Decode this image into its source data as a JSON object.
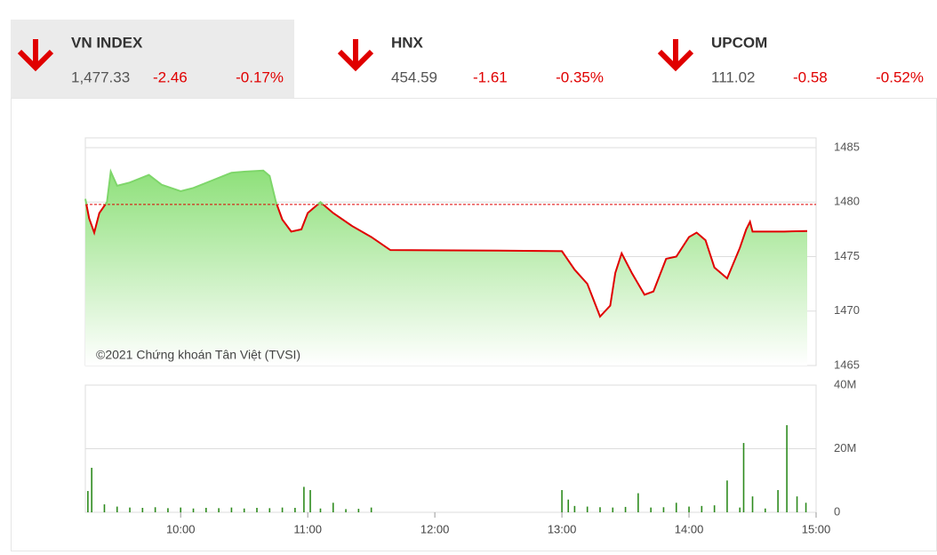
{
  "tabs": [
    {
      "name": "VN INDEX",
      "value": "1,477.33",
      "change": "-2.46",
      "percent": "-0.17%"
    },
    {
      "name": "HNX",
      "value": "454.59",
      "change": "-1.61",
      "percent": "-0.35%"
    },
    {
      "name": "UPCOM",
      "value": "111.02",
      "change": "-0.58",
      "percent": "-0.52%"
    }
  ],
  "chart_data": [
    {
      "type": "line",
      "annotation": "©2021 Chứng khoán Tân Việt (TVSI)",
      "x": [
        9.25,
        9.28,
        9.32,
        9.36,
        9.42,
        9.45,
        9.5,
        9.6,
        9.75,
        9.85,
        10.0,
        10.1,
        10.25,
        10.4,
        10.5,
        10.65,
        10.7,
        10.75,
        10.8,
        10.87,
        10.95,
        11.0,
        11.1,
        11.2,
        11.35,
        11.5,
        11.65,
        12.5,
        13.0,
        13.1,
        13.2,
        13.3,
        13.38,
        13.42,
        13.47,
        13.55,
        13.65,
        13.72,
        13.82,
        13.9,
        14.0,
        14.06,
        14.13,
        14.2,
        14.3,
        14.4,
        14.45,
        14.48,
        14.5,
        14.75,
        14.93
      ],
      "values": [
        1480.3,
        1478.5,
        1477.2,
        1479.0,
        1480.0,
        1482.8,
        1481.5,
        1481.8,
        1482.5,
        1481.6,
        1481.0,
        1481.3,
        1482.0,
        1482.7,
        1482.8,
        1482.9,
        1482.4,
        1480.0,
        1478.4,
        1477.3,
        1477.5,
        1479.0,
        1480.0,
        1479.0,
        1477.8,
        1476.8,
        1475.6,
        1475.55,
        1475.5,
        1473.8,
        1472.5,
        1469.5,
        1470.5,
        1473.5,
        1475.3,
        1473.5,
        1471.5,
        1471.8,
        1474.8,
        1475.0,
        1476.8,
        1477.2,
        1476.5,
        1474.0,
        1473.0,
        1475.8,
        1477.5,
        1478.2,
        1477.3,
        1477.3,
        1477.35
      ],
      "reference": 1479.79,
      "color_down": "#e00000",
      "color_up": "#7ed66a",
      "xlim": [
        9.25,
        15
      ],
      "ylim": [
        1465,
        1485
      ],
      "yticks": [
        1485,
        1480,
        1475,
        1470,
        1465
      ],
      "grid": true
    },
    {
      "type": "bar",
      "color": "#2e8b1e",
      "x": [
        9.27,
        9.3,
        9.4,
        9.5,
        9.6,
        9.7,
        9.8,
        9.9,
        10.0,
        10.1,
        10.2,
        10.3,
        10.4,
        10.5,
        10.6,
        10.7,
        10.8,
        10.9,
        10.97,
        11.02,
        11.1,
        11.2,
        11.3,
        11.4,
        11.5,
        13.0,
        13.05,
        13.1,
        13.2,
        13.3,
        13.4,
        13.5,
        13.6,
        13.7,
        13.8,
        13.9,
        14.0,
        14.1,
        14.2,
        14.3,
        14.4,
        14.43,
        14.5,
        14.6,
        14.7,
        14.77,
        14.85,
        14.92
      ],
      "values": [
        6700000,
        14000000,
        2500000,
        1800000,
        1500000,
        1400000,
        1600000,
        1300000,
        1500000,
        1200000,
        1400000,
        1300000,
        1500000,
        1200000,
        1400000,
        1300000,
        1500000,
        1400000,
        8000000,
        7000000,
        1200000,
        3000000,
        1000000,
        1100000,
        1500000,
        7000000,
        4000000,
        2000000,
        1800000,
        1600000,
        1500000,
        1700000,
        6000000,
        1500000,
        1600000,
        3000000,
        1800000,
        2000000,
        2200000,
        10000000,
        1500000,
        21800000,
        5000000,
        1200000,
        7000000,
        27400000,
        5000000,
        3000000
      ],
      "xlim": [
        9.25,
        15
      ],
      "ylim": [
        0,
        40000000
      ],
      "yticks": [
        {
          "value": 0,
          "label": "0"
        },
        {
          "value": 20000000,
          "label": "20M"
        },
        {
          "value": 40000000,
          "label": "40M"
        }
      ],
      "xticks": [
        {
          "value": 10,
          "label": "10:00"
        },
        {
          "value": 11,
          "label": "11:00"
        },
        {
          "value": 12,
          "label": "12:00"
        },
        {
          "value": 13,
          "label": "13:00"
        },
        {
          "value": 14,
          "label": "14:00"
        },
        {
          "value": 15,
          "label": "15:00"
        }
      ],
      "grid": true
    }
  ]
}
